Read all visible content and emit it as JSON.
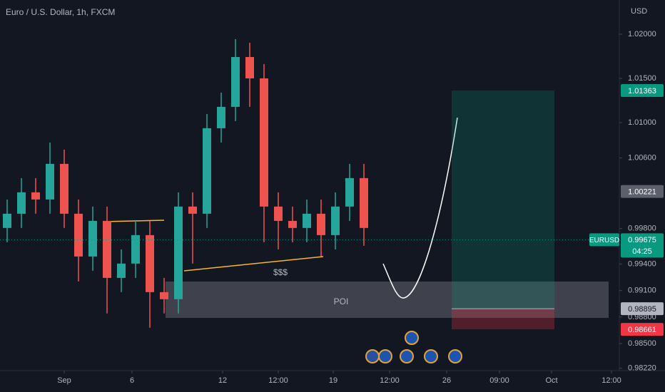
{
  "header": {
    "title": "Euro / U.S. Dollar, 1h, FXCM",
    "currency": "USD"
  },
  "chart_data": {
    "type": "candlestick",
    "symbol": "EURUSD",
    "open": [
      0.99808,
      0.99969,
      1.00211,
      1.0013,
      1.00533,
      0.99969,
      0.99485,
      0.99888,
      0.99243,
      0.99405,
      0.99727,
      0.99082,
      0.99002,
      1.0005,
      0.99969,
      1.00936,
      1.01178,
      1.01742,
      1.015,
      1.0005,
      0.99888,
      0.99808,
      0.99969,
      0.99727,
      1.0005,
      1.00372
    ],
    "high": [
      1.0013,
      1.00372,
      1.00372,
      1.00775,
      1.00694,
      1.0013,
      1.0005,
      1.0005,
      0.99566,
      0.99888,
      0.99888,
      0.99243,
      1.00211,
      1.00211,
      1.01097,
      1.01339,
      1.01944,
      1.01903,
      1.01662,
      1.00211,
      1.0005,
      1.0013,
      1.0013,
      1.00211,
      1.00533,
      1.00533
    ],
    "low": [
      0.99647,
      0.99808,
      0.99969,
      0.99969,
      0.99808,
      0.99203,
      0.99324,
      0.98841,
      0.99082,
      0.99243,
      0.98679,
      0.98841,
      0.98841,
      0.99405,
      0.99808,
      1.00775,
      1.01017,
      1.01178,
      0.99647,
      0.99566,
      0.99647,
      0.99647,
      0.99485,
      0.99566,
      0.99888,
      0.99606
    ],
    "close": [
      0.99969,
      1.00211,
      1.0013,
      1.00533,
      0.99969,
      0.99485,
      0.99888,
      0.99243,
      0.99405,
      0.99727,
      0.99082,
      0.99002,
      1.0005,
      0.99969,
      1.00936,
      1.01178,
      1.01742,
      1.015,
      1.0005,
      0.99888,
      0.99808,
      0.99969,
      0.99727,
      1.0005,
      1.00372,
      0.99808
    ],
    "up_color": "#26a69a",
    "down_color": "#ef5350",
    "ylim": [
      0.98194,
      1.02387
    ],
    "yticks": [
      {
        "value": 1.02,
        "label": "1.02000"
      },
      {
        "value": 1.015,
        "label": "1.01500"
      },
      {
        "value": 1.01,
        "label": "1.01000"
      },
      {
        "value": 1.006,
        "label": "1.00600"
      },
      {
        "value": 0.998,
        "label": "0.99800"
      },
      {
        "value": 0.994,
        "label": "0.99400"
      },
      {
        "value": 0.991,
        "label": "0.99100"
      },
      {
        "value": 0.988,
        "label": "0.98800"
      },
      {
        "value": 0.985,
        "label": "0.98500"
      },
      {
        "value": 0.9822,
        "label": "0.98220"
      }
    ],
    "xlim": [
      -0.5,
      42.75
    ],
    "xticks": [
      {
        "value": 4,
        "label": "Sep"
      },
      {
        "value": 8.75,
        "label": "6"
      },
      {
        "value": 15.1,
        "label": "12"
      },
      {
        "value": 19,
        "label": "12:00"
      },
      {
        "value": 22.85,
        "label": "19"
      },
      {
        "value": 26.8,
        "label": "12:00"
      },
      {
        "value": 30.8,
        "label": "26"
      },
      {
        "value": 34.5,
        "label": "09:00"
      },
      {
        "value": 38.15,
        "label": "Oct"
      },
      {
        "value": 42.35,
        "label": "12:00"
      }
    ],
    "last_price": {
      "value": 0.99675,
      "label": "0.99675"
    },
    "last_price_color": "#089981",
    "countdown": "04:25",
    "price_tags": [
      {
        "value": 1.01363,
        "label": "1.01363",
        "color": "#089981"
      },
      {
        "value": 1.00221,
        "label": "1.00221",
        "color": "#5d606b"
      },
      {
        "value": 0.98895,
        "label": "0.98895",
        "color": "#b2b5be"
      },
      {
        "value": 0.98661,
        "label": "0.98661",
        "color": "#f23645"
      }
    ]
  },
  "annotations": {
    "liquidity": "$$$",
    "zone": "POI"
  }
}
